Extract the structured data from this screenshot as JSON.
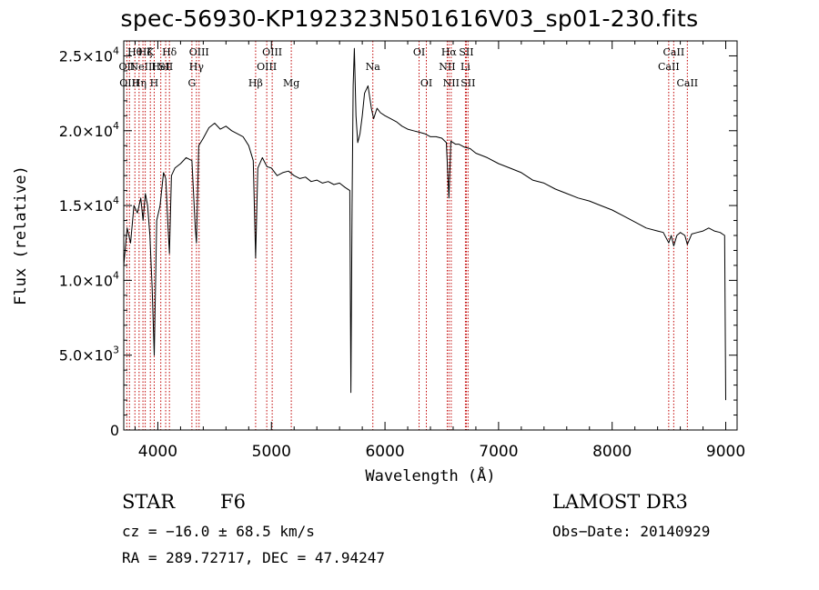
{
  "chart_data": {
    "type": "line",
    "title": "spec-56930-KP192323N501616V03_sp01-230.fits",
    "xlabel": "Wavelength (Å)",
    "ylabel": "Flux (relative)",
    "xlim": [
      3700,
      9100
    ],
    "ylim": [
      0,
      26000
    ],
    "x_ticks": [
      4000,
      5000,
      6000,
      7000,
      8000,
      9000
    ],
    "x_tick_labels": [
      "4000",
      "5000",
      "6000",
      "7000",
      "8000",
      "9000"
    ],
    "y_ticks": [
      0,
      5000,
      10000,
      15000,
      20000,
      25000
    ],
    "y_tick_labels": [
      {
        "mant": "0",
        "exp": ""
      },
      {
        "mant": "5.0×10",
        "exp": "3"
      },
      {
        "mant": "1.0×10",
        "exp": "4"
      },
      {
        "mant": "1.5×10",
        "exp": "4"
      },
      {
        "mant": "2.0×10",
        "exp": "4"
      },
      {
        "mant": "2.5×10",
        "exp": "4"
      }
    ],
    "series": [
      {
        "name": "spectrum",
        "x": [
          3700,
          3730,
          3760,
          3790,
          3820,
          3850,
          3870,
          3890,
          3910,
          3930,
          3950,
          3968,
          3990,
          4020,
          4050,
          4070,
          4090,
          4102,
          4120,
          4150,
          4200,
          4250,
          4300,
          4330,
          4340,
          4360,
          4400,
          4450,
          4500,
          4550,
          4600,
          4650,
          4700,
          4750,
          4800,
          4840,
          4861,
          4880,
          4920,
          4960,
          5000,
          5050,
          5100,
          5150,
          5200,
          5250,
          5300,
          5350,
          5400,
          5450,
          5500,
          5550,
          5600,
          5650,
          5690,
          5700,
          5710,
          5720,
          5730,
          5745,
          5760,
          5780,
          5800,
          5820,
          5850,
          5880,
          5900,
          5930,
          5960,
          6000,
          6050,
          6100,
          6150,
          6200,
          6250,
          6300,
          6350,
          6400,
          6450,
          6500,
          6540,
          6563,
          6580,
          6620,
          6650,
          6700,
          6750,
          6800,
          6900,
          7000,
          7100,
          7200,
          7300,
          7400,
          7500,
          7600,
          7700,
          7800,
          7900,
          8000,
          8100,
          8200,
          8300,
          8400,
          8450,
          8498,
          8520,
          8542,
          8570,
          8600,
          8640,
          8662,
          8700,
          8750,
          8800,
          8850,
          8900,
          8950,
          8990,
          9000
        ],
        "y": [
          11000,
          13500,
          12500,
          15000,
          14500,
          15500,
          14000,
          15800,
          15000,
          13000,
          9500,
          5000,
          14000,
          15000,
          17200,
          16800,
          13500,
          11800,
          17000,
          17500,
          17800,
          18200,
          18000,
          13500,
          12500,
          19000,
          19500,
          20200,
          20500,
          20100,
          20300,
          20000,
          19800,
          19600,
          19000,
          18000,
          11500,
          17500,
          18200,
          17600,
          17500,
          17000,
          17200,
          17300,
          17000,
          16800,
          16900,
          16600,
          16700,
          16500,
          16600,
          16400,
          16500,
          16200,
          16000,
          2500,
          15000,
          23000,
          25500,
          21000,
          19200,
          19800,
          21000,
          22500,
          23000,
          21500,
          20800,
          21500,
          21200,
          21000,
          20800,
          20600,
          20300,
          20100,
          20000,
          19900,
          19800,
          19600,
          19600,
          19500,
          19200,
          15500,
          19300,
          19100,
          19100,
          18900,
          18800,
          18500,
          18200,
          17800,
          17500,
          17200,
          16700,
          16500,
          16100,
          15800,
          15500,
          15300,
          15000,
          14700,
          14300,
          13900,
          13500,
          13300,
          13200,
          12500,
          13000,
          12300,
          13000,
          13200,
          13000,
          12400,
          13100,
          13200,
          13300,
          13500,
          13300,
          13200,
          13000,
          2000
        ]
      }
    ],
    "line_markers": [
      {
        "wavelength": 3727,
        "label": "OII",
        "row": 1
      },
      {
        "wavelength": 3750,
        "label": "OIII",
        "row": 2
      },
      {
        "wavelength": 3798,
        "label": "Hθ",
        "row": 0
      },
      {
        "wavelength": 3835,
        "label": "Hη",
        "row": 2
      },
      {
        "wavelength": 3869,
        "label": "NeIII",
        "row": 1
      },
      {
        "wavelength": 3889,
        "label": "Hζ",
        "row": 0
      },
      {
        "wavelength": 3934,
        "label": "K",
        "row": 0
      },
      {
        "wavelength": 3968,
        "label": "H",
        "row": 2
      },
      {
        "wavelength": 4026,
        "label": "HeI",
        "row": 1
      },
      {
        "wavelength": 4069,
        "label": "SII",
        "row": 1
      },
      {
        "wavelength": 4102,
        "label": "Hδ",
        "row": 0
      },
      {
        "wavelength": 4300,
        "label": "G",
        "row": 2
      },
      {
        "wavelength": 4340,
        "label": "Hγ",
        "row": 1
      },
      {
        "wavelength": 4363,
        "label": "OIII",
        "row": 0
      },
      {
        "wavelength": 4861,
        "label": "Hβ",
        "row": 2
      },
      {
        "wavelength": 4959,
        "label": "OIII",
        "row": 1
      },
      {
        "wavelength": 5007,
        "label": "OIII",
        "row": 0
      },
      {
        "wavelength": 5175,
        "label": "Mg",
        "row": 2
      },
      {
        "wavelength": 5893,
        "label": "Na",
        "row": 1
      },
      {
        "wavelength": 6300,
        "label": "OI",
        "row": 0
      },
      {
        "wavelength": 6364,
        "label": "OI",
        "row": 2
      },
      {
        "wavelength": 6548,
        "label": "NII",
        "row": 1
      },
      {
        "wavelength": 6563,
        "label": "Hα",
        "row": 0
      },
      {
        "wavelength": 6583,
        "label": "NII",
        "row": 2
      },
      {
        "wavelength": 6708,
        "label": "Li",
        "row": 1
      },
      {
        "wavelength": 6716,
        "label": "SII",
        "row": 0
      },
      {
        "wavelength": 6731,
        "label": "SII",
        "row": 2
      },
      {
        "wavelength": 8498,
        "label": "CaII",
        "row": 1
      },
      {
        "wavelength": 8542,
        "label": "CaII",
        "row": 0
      },
      {
        "wavelength": 8662,
        "label": "CaII",
        "row": 2
      }
    ],
    "colors": {
      "spectrum": "#000000",
      "marker": "#c00000"
    }
  },
  "info": {
    "class_label": "STAR",
    "subclass": "F6",
    "survey": "LAMOST DR3",
    "redshift": "cz = −16.0 ± 68.5 km/s",
    "obs_date": "Obs−Date: 20140929",
    "coords": "RA = 289.72717, DEC =  47.94247"
  }
}
